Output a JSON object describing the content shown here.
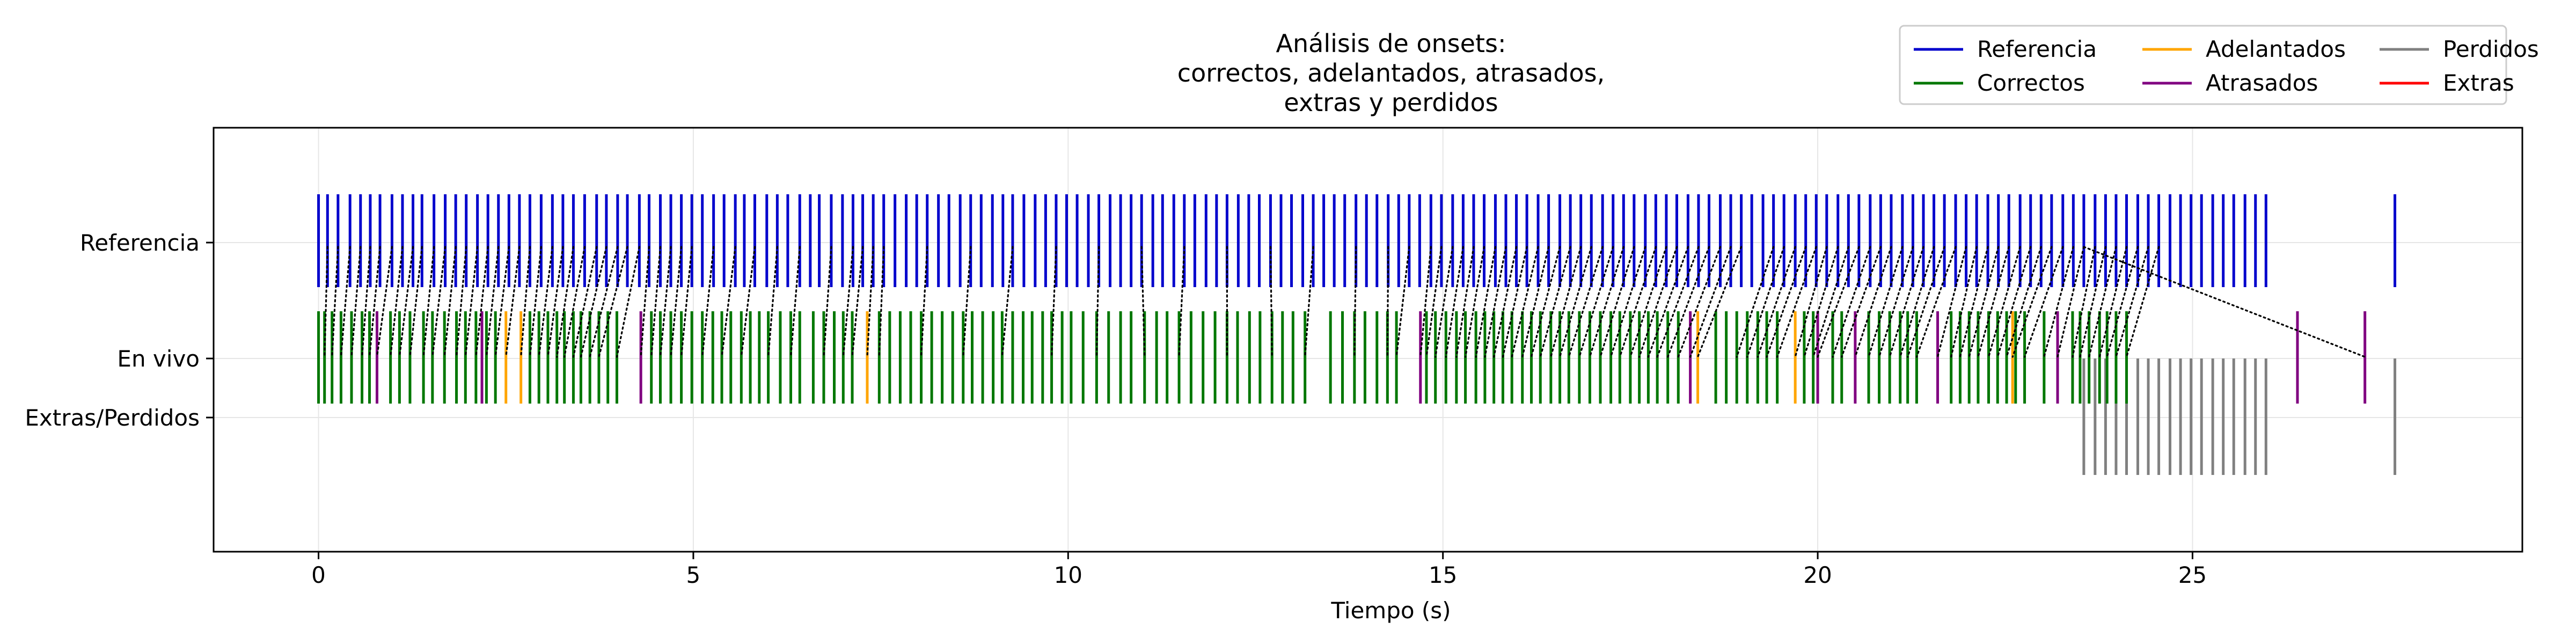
{
  "chart_data": {
    "type": "eventplot",
    "title": "Análisis de onsets:\ncorrectos, adelantados, atrasados,\nextras y perdidos",
    "xlabel": "Tiempo (s)",
    "ylabel": "",
    "xlim": [
      -1.4,
      29.4
    ],
    "xticks": [
      0,
      5,
      10,
      15,
      20,
      25
    ],
    "rows": [
      {
        "key": "ref",
        "label": "Referencia"
      },
      {
        "key": "live",
        "label": "En vivo"
      },
      {
        "key": "extra",
        "label": "Extras/Perdidos"
      }
    ],
    "grid": true,
    "legend_position": "top-right",
    "legend": [
      {
        "name": "Referencia",
        "color": "#0000cc"
      },
      {
        "name": "Correctos",
        "color": "#007700"
      },
      {
        "name": "Adelantados",
        "color": "#ffa500"
      },
      {
        "name": "Atrasados",
        "color": "#800080"
      },
      {
        "name": "Perdidos",
        "color": "#808080"
      },
      {
        "name": "Extras",
        "color": "#ff0000"
      }
    ],
    "series": [
      {
        "name": "Referencia",
        "row": "ref",
        "color": "#0000cc",
        "values": [
          0.0,
          0.12,
          0.26,
          0.42,
          0.56,
          0.69,
          0.82,
          0.98,
          1.12,
          1.26,
          1.38,
          1.54,
          1.69,
          1.83,
          1.97,
          2.12,
          2.26,
          2.4,
          2.54,
          2.68,
          2.82,
          2.97,
          3.12,
          3.26,
          3.4,
          3.55,
          3.71,
          3.84,
          3.99,
          4.12,
          4.28,
          4.41,
          4.56,
          4.7,
          4.84,
          4.98,
          5.12,
          5.27,
          5.41,
          5.56,
          5.68,
          5.82,
          5.98,
          6.12,
          6.26,
          6.42,
          6.56,
          6.68,
          6.84,
          6.99,
          7.13,
          7.26,
          7.4,
          7.54,
          7.69,
          7.84,
          7.98,
          8.12,
          8.27,
          8.41,
          8.56,
          8.7,
          8.84,
          8.99,
          9.13,
          9.26,
          9.41,
          9.56,
          9.7,
          9.84,
          9.98,
          10.12,
          10.27,
          10.41,
          10.56,
          10.7,
          10.84,
          10.98,
          11.13,
          11.26,
          11.41,
          11.55,
          11.69,
          11.84,
          11.98,
          12.12,
          12.27,
          12.41,
          12.55,
          12.7,
          12.84,
          12.98,
          13.13,
          13.27,
          13.41,
          13.55,
          13.69,
          13.84,
          13.98,
          14.12,
          14.27,
          14.41,
          14.55,
          14.69,
          14.84,
          14.98,
          15.13,
          15.27,
          15.41,
          15.55,
          15.7,
          15.84,
          15.98,
          16.12,
          16.27,
          16.41,
          16.56,
          16.7,
          16.84,
          16.98,
          17.13,
          17.27,
          17.41,
          17.55,
          17.7,
          17.84,
          17.98,
          18.12,
          18.27,
          18.41,
          18.55,
          18.7,
          18.84,
          18.98,
          19.12,
          19.27,
          19.41,
          19.55,
          19.7,
          19.84,
          19.98,
          20.12,
          20.27,
          20.41,
          20.55,
          20.7,
          20.84,
          20.98,
          21.13,
          21.27,
          21.41,
          21.55,
          21.69,
          21.84,
          21.98,
          22.12,
          22.27,
          22.41,
          22.55,
          22.7,
          22.84,
          22.98,
          23.12,
          23.27,
          23.41,
          23.55,
          23.7,
          23.84,
          23.98,
          24.12,
          24.27,
          24.41,
          24.55,
          24.7,
          24.84,
          24.98,
          25.12,
          25.27,
          25.41,
          25.55,
          25.7,
          25.84,
          25.98,
          27.7
        ]
      },
      {
        "name": "Correctos",
        "row": "live",
        "color": "#007700",
        "values": [
          0.0,
          0.08,
          0.18,
          0.3,
          0.44,
          0.58,
          0.68,
          0.96,
          1.08,
          1.22,
          1.4,
          1.52,
          1.68,
          1.84,
          1.96,
          2.1,
          2.24,
          2.36,
          2.82,
          2.94,
          3.06,
          3.18,
          3.28,
          3.4,
          3.5,
          3.62,
          3.74,
          3.86,
          3.98,
          4.44,
          4.56,
          4.7,
          4.84,
          4.98,
          5.12,
          5.26,
          5.38,
          5.5,
          5.64,
          5.76,
          5.88,
          6.0,
          6.16,
          6.3,
          6.42,
          6.6,
          6.74,
          6.88,
          7.0,
          7.12,
          7.48,
          7.62,
          7.76,
          7.9,
          8.04,
          8.18,
          8.32,
          8.46,
          8.6,
          8.72,
          8.86,
          9.0,
          9.12,
          9.26,
          9.4,
          9.52,
          9.66,
          9.78,
          9.92,
          10.04,
          10.2,
          10.38,
          10.54,
          10.7,
          10.84,
          11.02,
          11.18,
          11.32,
          11.48,
          11.64,
          11.8,
          11.96,
          12.12,
          12.26,
          12.42,
          12.56,
          12.72,
          12.86,
          13.0,
          13.16,
          13.5,
          13.66,
          13.82,
          13.96,
          14.12,
          14.26,
          14.38,
          14.78,
          14.9,
          15.04,
          15.18,
          15.3,
          15.44,
          15.56,
          15.68,
          15.8,
          15.92,
          16.06,
          16.18,
          16.3,
          16.44,
          16.56,
          16.68,
          16.82,
          16.96,
          17.1,
          17.24,
          17.36,
          17.5,
          17.62,
          17.74,
          17.86,
          18.0,
          18.14,
          18.64,
          18.78,
          18.92,
          19.06,
          19.2,
          19.32,
          19.46,
          19.82,
          19.94,
          20.2,
          20.32,
          20.68,
          20.82,
          20.96,
          21.1,
          21.2,
          21.32,
          21.78,
          21.9,
          22.02,
          22.14,
          22.28,
          22.4,
          22.52,
          22.64,
          22.76,
          23.02,
          23.4,
          23.5,
          23.62,
          23.76,
          23.86,
          23.98,
          24.12
        ]
      },
      {
        "name": "Adelantados",
        "row": "live",
        "color": "#ffa500",
        "values": [
          2.5,
          2.7,
          7.32,
          18.4,
          19.7,
          22.6
        ]
      },
      {
        "name": "Atrasados",
        "row": "live",
        "color": "#800080",
        "values": [
          0.78,
          2.18,
          4.3,
          14.7,
          18.3,
          20.0,
          20.5,
          21.6,
          23.2,
          26.4,
          27.3
        ]
      },
      {
        "name": "Perdidos",
        "row": "extra",
        "color": "#808080",
        "values": [
          23.55,
          23.7,
          23.84,
          23.98,
          24.12,
          24.27,
          24.41,
          24.55,
          24.7,
          24.84,
          24.98,
          25.12,
          25.27,
          25.41,
          25.55,
          25.7,
          25.84,
          25.98,
          27.7
        ]
      },
      {
        "name": "Extras",
        "row": "extra",
        "color": "#ff0000",
        "values": []
      }
    ],
    "matches": [
      [
        0.12,
        0.08
      ],
      [
        0.26,
        0.18
      ],
      [
        0.42,
        0.3
      ],
      [
        0.56,
        0.44
      ],
      [
        0.69,
        0.58
      ],
      [
        0.82,
        0.68
      ],
      [
        0.98,
        0.78
      ],
      [
        1.12,
        0.96
      ],
      [
        1.26,
        1.08
      ],
      [
        1.38,
        1.22
      ],
      [
        1.54,
        1.4
      ],
      [
        1.69,
        1.52
      ],
      [
        1.83,
        1.68
      ],
      [
        1.97,
        1.84
      ],
      [
        2.12,
        1.96
      ],
      [
        2.26,
        2.1
      ],
      [
        2.4,
        2.24
      ],
      [
        2.54,
        2.36
      ],
      [
        2.68,
        2.5
      ],
      [
        2.82,
        2.7
      ],
      [
        2.97,
        2.82
      ],
      [
        3.12,
        2.94
      ],
      [
        3.26,
        3.06
      ],
      [
        3.4,
        3.18
      ],
      [
        3.55,
        3.28
      ],
      [
        3.71,
        3.4
      ],
      [
        3.84,
        3.5
      ],
      [
        3.99,
        3.62
      ],
      [
        4.12,
        3.74
      ],
      [
        4.28,
        3.98
      ],
      [
        4.41,
        4.3
      ],
      [
        4.56,
        4.44
      ],
      [
        4.7,
        4.56
      ],
      [
        4.84,
        4.7
      ],
      [
        4.98,
        4.84
      ],
      [
        5.27,
        5.12
      ],
      [
        5.56,
        5.38
      ],
      [
        5.82,
        5.64
      ],
      [
        6.12,
        6.0
      ],
      [
        6.42,
        6.3
      ],
      [
        6.84,
        6.74
      ],
      [
        7.13,
        7.0
      ],
      [
        7.26,
        7.12
      ],
      [
        7.4,
        7.32
      ],
      [
        7.54,
        7.48
      ],
      [
        8.12,
        8.04
      ],
      [
        8.7,
        8.6
      ],
      [
        9.26,
        9.12
      ],
      [
        9.84,
        9.78
      ],
      [
        10.41,
        10.38
      ],
      [
        10.98,
        11.02
      ],
      [
        11.55,
        11.48
      ],
      [
        12.12,
        12.12
      ],
      [
        12.7,
        12.72
      ],
      [
        13.27,
        13.16
      ],
      [
        13.84,
        13.82
      ],
      [
        14.27,
        14.26
      ],
      [
        14.55,
        14.38
      ],
      [
        14.84,
        14.7
      ],
      [
        14.98,
        14.78
      ],
      [
        15.13,
        14.9
      ],
      [
        15.27,
        15.04
      ],
      [
        15.41,
        15.18
      ],
      [
        15.55,
        15.3
      ],
      [
        15.7,
        15.44
      ],
      [
        15.84,
        15.56
      ],
      [
        15.98,
        15.68
      ],
      [
        16.12,
        15.8
      ],
      [
        16.27,
        15.92
      ],
      [
        16.41,
        16.06
      ],
      [
        16.56,
        16.18
      ],
      [
        16.7,
        16.3
      ],
      [
        16.84,
        16.44
      ],
      [
        16.98,
        16.56
      ],
      [
        17.13,
        16.68
      ],
      [
        17.27,
        16.82
      ],
      [
        17.41,
        16.96
      ],
      [
        17.55,
        17.1
      ],
      [
        17.7,
        17.24
      ],
      [
        17.84,
        17.36
      ],
      [
        17.98,
        17.5
      ],
      [
        18.12,
        17.62
      ],
      [
        18.27,
        17.74
      ],
      [
        18.41,
        17.86
      ],
      [
        18.55,
        18.0
      ],
      [
        18.7,
        18.14
      ],
      [
        18.84,
        18.3
      ],
      [
        18.98,
        18.4
      ],
      [
        19.41,
        18.92
      ],
      [
        19.55,
        19.06
      ],
      [
        19.7,
        19.2
      ],
      [
        19.84,
        19.32
      ],
      [
        19.98,
        19.46
      ],
      [
        20.12,
        19.7
      ],
      [
        20.27,
        19.82
      ],
      [
        20.41,
        19.94
      ],
      [
        20.55,
        20.0
      ],
      [
        20.7,
        20.2
      ],
      [
        20.84,
        20.32
      ],
      [
        20.98,
        20.5
      ],
      [
        21.13,
        20.68
      ],
      [
        21.27,
        20.82
      ],
      [
        21.41,
        20.96
      ],
      [
        21.55,
        21.1
      ],
      [
        21.69,
        21.2
      ],
      [
        21.84,
        21.32
      ],
      [
        21.98,
        21.6
      ],
      [
        22.12,
        21.78
      ],
      [
        22.27,
        21.9
      ],
      [
        22.41,
        22.02
      ],
      [
        22.55,
        22.14
      ],
      [
        22.7,
        22.28
      ],
      [
        22.84,
        22.4
      ],
      [
        22.98,
        22.52
      ],
      [
        23.12,
        22.6
      ],
      [
        23.27,
        22.76
      ],
      [
        23.41,
        23.02
      ],
      [
        23.55,
        23.2
      ],
      [
        23.7,
        23.4
      ],
      [
        23.84,
        23.5
      ],
      [
        23.98,
        23.62
      ],
      [
        24.12,
        23.76
      ],
      [
        24.27,
        23.86
      ],
      [
        24.41,
        23.98
      ],
      [
        24.55,
        24.12
      ],
      [
        23.55,
        27.3
      ]
    ]
  }
}
